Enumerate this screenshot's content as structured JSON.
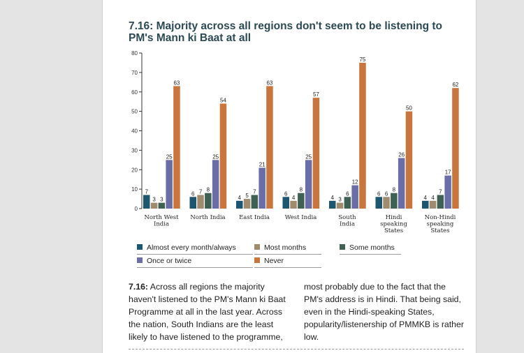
{
  "chart_data": {
    "type": "bar",
    "title": "7.16: Majority across all regions don't seem to be listening to PM's Mann ki Baat at all",
    "title_line1": "7.16: Majority across all regions don't seem to be listening to",
    "title_line2": "PM's Mann ki Baat at all",
    "categories": [
      [
        "North West",
        "India"
      ],
      [
        "North India"
      ],
      [
        "East India"
      ],
      [
        "West India"
      ],
      [
        "South",
        "India"
      ],
      [
        "Hindi",
        "speaking",
        "States"
      ],
      [
        "Non-Hindi",
        "speaking",
        "States"
      ]
    ],
    "series": [
      {
        "name": "Almost every month/always",
        "color": "#1d5670",
        "values": [
          7,
          6,
          4,
          6,
          4,
          6,
          4
        ]
      },
      {
        "name": "Most months",
        "color": "#a08b6e",
        "values": [
          3,
          7,
          5,
          4,
          3,
          6,
          4
        ]
      },
      {
        "name": "Some months",
        "color": "#3e6153",
        "values": [
          3,
          8,
          7,
          8,
          6,
          8,
          7
        ]
      },
      {
        "name": "Once or twice",
        "color": "#6b6ea6",
        "values": [
          25,
          25,
          21,
          25,
          12,
          26,
          17
        ]
      },
      {
        "name": "Never",
        "color": "#c8763d",
        "values": [
          63,
          54,
          63,
          57,
          75,
          50,
          62
        ]
      }
    ],
    "yticks": [
      0,
      10,
      20,
      30,
      40,
      50,
      60,
      70,
      80
    ],
    "ylim": [
      0,
      80
    ],
    "grid": false,
    "legend_position": "bottom"
  },
  "caption": {
    "label": "7.16:",
    "col1": " Across all regions the majority haven't listened to the PM's Mann ki Baat Programme at all in the last year. Across the nation, South Indians are the least likely to have listened to the programme,",
    "col2": "most probably due to the fact that the PM's address is in Hindi. That being said, even in the Hindi-speaking States, popularity/listenership of PMMKB is rather low."
  }
}
